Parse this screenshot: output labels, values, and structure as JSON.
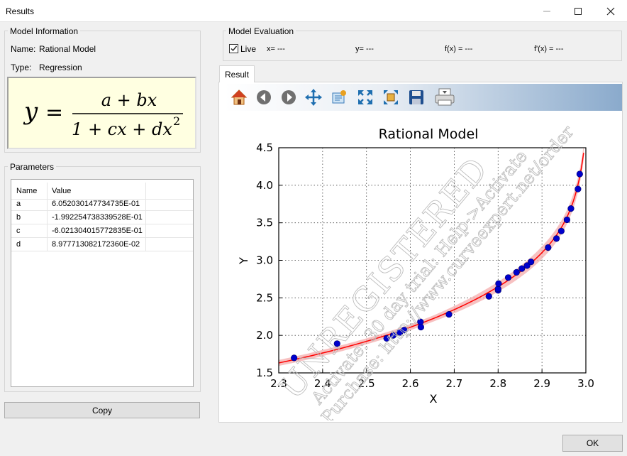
{
  "window": {
    "title": "Results"
  },
  "model_info": {
    "group_label": "Model Information",
    "name_label": "Name:",
    "name_value": "Rational Model",
    "type_label": "Type:",
    "type_value": "Regression",
    "formula": {
      "lhs": "y",
      "equals": "=",
      "numerator": "a + bx",
      "denominator": "1 + cx + dx",
      "exponent": "2"
    }
  },
  "parameters": {
    "group_label": "Parameters",
    "columns": [
      "Name",
      "Value"
    ],
    "rows": [
      {
        "name": "a",
        "value": "6.052030147734735E-01"
      },
      {
        "name": "b",
        "value": "-1.992254738339528E-01"
      },
      {
        "name": "c",
        "value": "-6.021304015772835E-01"
      },
      {
        "name": "d",
        "value": "8.977713082172360E-02"
      }
    ]
  },
  "copy_button": "Copy",
  "ok_button": "OK",
  "evaluation": {
    "group_label": "Model Evaluation",
    "live_label": "Live",
    "live_checked": true,
    "x_label": "x= ---",
    "y_label": "y= ---",
    "fx_label": "f(x) = ---",
    "dfx_label": "f'(x) = ---"
  },
  "tab": {
    "label": "Result"
  },
  "toolbar": {
    "icons": [
      "home-icon",
      "back-icon",
      "forward-icon",
      "pan-icon",
      "configure-icon",
      "zoom-to-fit-icon",
      "zoom-rect-icon",
      "save-icon",
      "print-icon"
    ]
  },
  "watermark": {
    "line1": "UNREGISTERED",
    "line2": "Activate: 30 day trial: Help->Activate",
    "line3": "Purchase: http://www.curveexpert.net/order"
  },
  "chart_data": {
    "type": "scatter",
    "title": "Rational Model",
    "xlabel": "X",
    "ylabel": "Y",
    "xlim": [
      2.3,
      3.0
    ],
    "ylim": [
      1.5,
      4.5
    ],
    "xticks": [
      "2.3",
      "2.4",
      "2.5",
      "2.6",
      "2.7",
      "2.8",
      "2.9",
      "3.0"
    ],
    "yticks": [
      "1.5",
      "2.0",
      "2.5",
      "3.0",
      "3.5",
      "4.0",
      "4.5"
    ],
    "grid": true,
    "fit_color": "#ff0000",
    "band_color": "#f4a6a6",
    "point_color": "#0000cc",
    "series": [
      {
        "name": "data",
        "x": [
          2.335,
          2.433,
          2.546,
          2.561,
          2.576,
          2.586,
          2.623,
          2.624,
          2.688,
          2.779,
          2.8,
          2.8,
          2.801,
          2.823,
          2.842,
          2.854,
          2.866,
          2.875,
          2.914,
          2.933,
          2.944,
          2.957,
          2.966,
          2.982,
          2.986
        ],
        "y": [
          1.7,
          1.89,
          1.96,
          2.0,
          2.04,
          2.07,
          2.18,
          2.11,
          2.28,
          2.52,
          2.6,
          2.62,
          2.69,
          2.77,
          2.84,
          2.89,
          2.93,
          2.98,
          3.17,
          3.29,
          3.39,
          3.54,
          3.69,
          3.95,
          4.15
        ]
      }
    ]
  }
}
